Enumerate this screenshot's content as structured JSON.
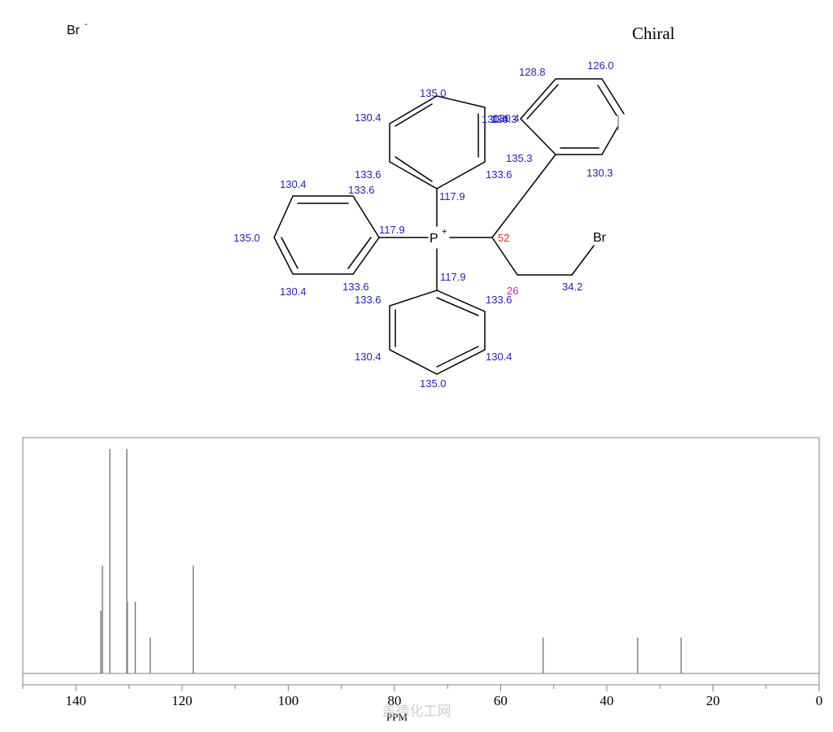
{
  "counter_ion": {
    "symbol": "Br",
    "charge": "-"
  },
  "chirality_label": "Chiral",
  "atoms": {
    "phosphorus": {
      "symbol": "P",
      "charge": "+"
    },
    "bromine": "Br"
  },
  "shift_labels": {
    "top_ring": {
      "para": "135.0",
      "meta_left": "130.4",
      "meta_right": "130.4",
      "ortho_left": "133.6",
      "ortho_right": "133.6",
      "ipso": "117.9"
    },
    "left_ring": {
      "para": "135.0",
      "meta_top": "130.4",
      "meta_bottom": "130.4",
      "ortho_top": "133.6",
      "ortho_bottom": "133.6",
      "ipso": "117.9"
    },
    "bottom_ring": {
      "para": "135.0",
      "meta_left": "130.4",
      "meta_right": "130.4",
      "ortho_left": "133.6",
      "ortho_right": "133.6",
      "ipso": "117.9"
    },
    "phenyl_ring": {
      "a": "128.8",
      "b": "126.0",
      "c": "130.3",
      "d": "130.4",
      "e": "135.3",
      "f": "130.3"
    },
    "chain": {
      "ch": "52",
      "ch2": "26",
      "ch2br": "34.2"
    }
  },
  "colors": {
    "shift_label": "#2323b4",
    "ch_label": "#e02020",
    "ch2_label": "#d020c0",
    "peak": "#808080",
    "frame": "#808080"
  },
  "watermark": "盖德化工网",
  "chart_data": {
    "type": "bar",
    "xlabel": "PPM",
    "xlim": [
      150,
      0
    ],
    "x_reversed": true,
    "x_ticks": [
      140,
      120,
      100,
      80,
      60,
      40,
      20,
      0
    ],
    "grid": false,
    "peaks": [
      {
        "ppm": 135.3,
        "intensity": 0.28
      },
      {
        "ppm": 135.0,
        "intensity": 0.48
      },
      {
        "ppm": 133.6,
        "intensity": 1.0
      },
      {
        "ppm": 130.4,
        "intensity": 1.0
      },
      {
        "ppm": 130.3,
        "intensity": 0.32
      },
      {
        "ppm": 128.8,
        "intensity": 0.32
      },
      {
        "ppm": 126.0,
        "intensity": 0.16
      },
      {
        "ppm": 117.9,
        "intensity": 0.48
      },
      {
        "ppm": 52.0,
        "intensity": 0.16
      },
      {
        "ppm": 34.2,
        "intensity": 0.16
      },
      {
        "ppm": 26.0,
        "intensity": 0.16
      }
    ]
  }
}
